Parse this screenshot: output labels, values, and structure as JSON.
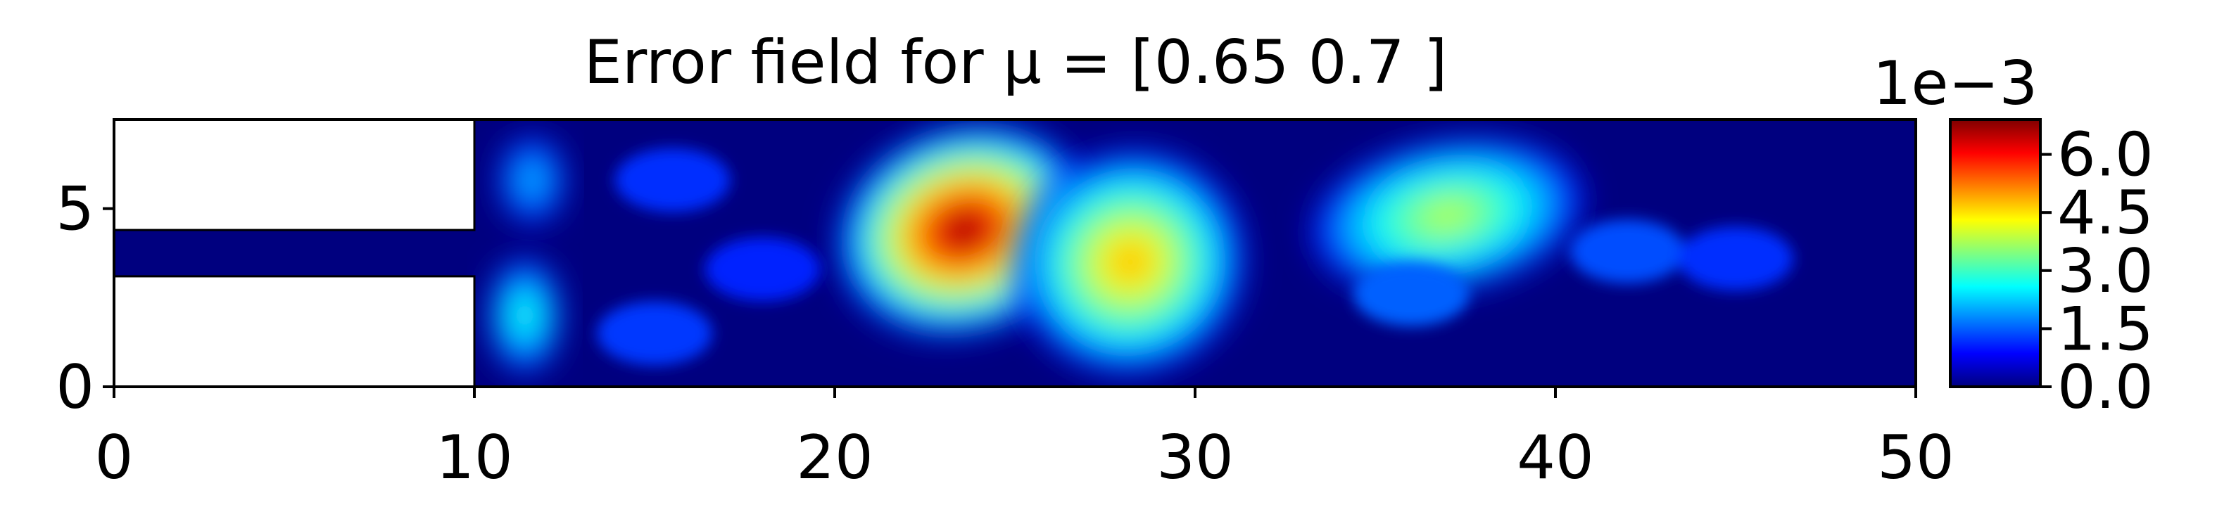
{
  "chart_data": {
    "type": "heatmap",
    "title": "Error field for μ = [0.65 0.7 ]",
    "xlabel": "",
    "ylabel": "",
    "xlim": [
      0,
      50
    ],
    "ylim": [
      0,
      7.5
    ],
    "xticks": [
      0,
      10,
      20,
      30,
      40,
      50
    ],
    "yticks": [
      0,
      5
    ],
    "x_tick_labels": [
      "0",
      "10",
      "20",
      "30",
      "40",
      "50"
    ],
    "y_tick_labels": [
      "0",
      "5"
    ],
    "grid": false,
    "colormap": "jet",
    "colorbar": {
      "min": 0.0,
      "max": 0.0069,
      "ticks": [
        0.0,
        1.5,
        3.0,
        4.5,
        6.0
      ],
      "tick_labels": [
        "0.0",
        "1.5",
        "3.0",
        "4.5",
        "6.0"
      ],
      "offset_label": "1e−3"
    },
    "domain": {
      "blank_regions": [
        {
          "name": "inlet-wall-top",
          "x": [
            0,
            10
          ],
          "y": [
            4.4,
            7.5
          ]
        },
        {
          "name": "inlet-wall-bottom",
          "x": [
            0,
            10
          ],
          "y": [
            0,
            3.1
          ]
        }
      ]
    },
    "hotspots": [
      {
        "name": "main-peak",
        "x": 23.6,
        "y": 4.4,
        "value": 0.0069
      },
      {
        "name": "second-peak",
        "x": 28.2,
        "y": 3.5,
        "value": 0.0049
      },
      {
        "name": "third-peak",
        "x": 37.0,
        "y": 4.8,
        "value": 0.0039
      },
      {
        "name": "inlet-lower-lobe",
        "x": 11.4,
        "y": 2.0,
        "value": 0.0029
      },
      {
        "name": "inlet-upper-lobe",
        "x": 11.6,
        "y": 5.8,
        "value": 0.0022
      }
    ]
  }
}
